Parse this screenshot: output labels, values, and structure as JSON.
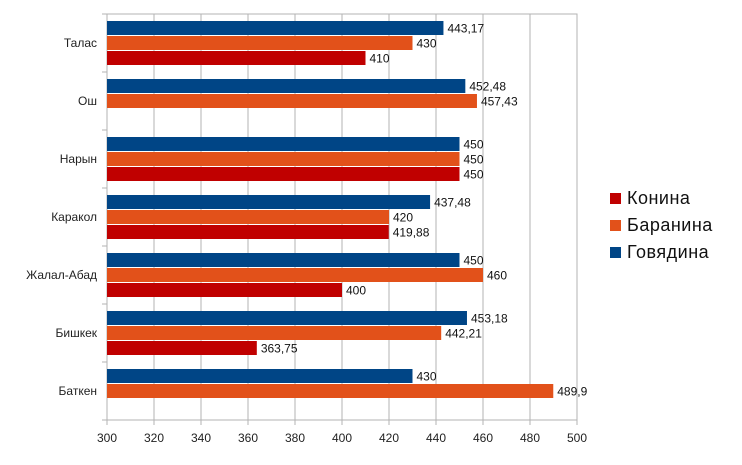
{
  "chart_data": {
    "type": "bar",
    "orientation": "horizontal",
    "title": "",
    "xlabel": "",
    "ylabel": "",
    "xlim": [
      300,
      500
    ],
    "x_ticks": [
      300,
      320,
      340,
      360,
      380,
      400,
      420,
      440,
      460,
      480,
      500
    ],
    "grid": true,
    "legend_position": "right",
    "categories": [
      "Талас",
      "Ош",
      "Нарын",
      "Каракол",
      "Жалал-Абад",
      "Бишкек",
      "Баткен"
    ],
    "series": [
      {
        "name": "Конина",
        "color": "#c00000",
        "values": [
          410,
          null,
          450,
          419.88,
          400,
          363.75,
          null
        ],
        "labels": [
          "410",
          "",
          "450",
          "419,88",
          "400",
          "363,75",
          ""
        ]
      },
      {
        "name": "Баранина",
        "color": "#e2511a",
        "values": [
          430,
          457.43,
          450,
          420,
          460,
          442.21,
          489.9
        ],
        "labels": [
          "430",
          "457,43",
          "450",
          "420",
          "460",
          "442,21",
          "489,9"
        ]
      },
      {
        "name": "Говядина",
        "color": "#004586",
        "values": [
          443.17,
          452.48,
          450,
          437.48,
          450,
          453.18,
          430
        ],
        "labels": [
          "443,17",
          "452,48",
          "450",
          "437,48",
          "450",
          "453,18",
          "430"
        ]
      }
    ],
    "legend_order": [
      "Конина",
      "Баранина",
      "Говядина"
    ]
  }
}
